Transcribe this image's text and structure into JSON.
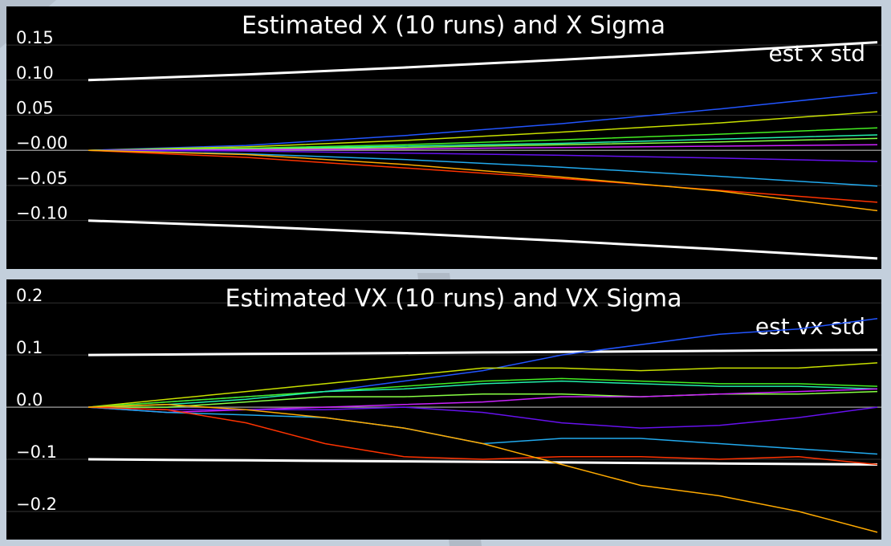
{
  "chart_data": [
    {
      "type": "line",
      "title": "Estimated X (10 runs) and X Sigma",
      "grid": true,
      "legend": "upper right",
      "ylim": [
        -0.169,
        0.205
      ],
      "yticks": [
        0.15,
        {
          "value": 0.1,
          "label": "0.10"
        },
        0.05,
        {
          "value": 0,
          "label": "−0.00"
        },
        {
          "value": -0.05,
          "label": "−0.05"
        },
        {
          "value": -0.1,
          "label": "−0.10"
        }
      ],
      "series": [
        {
          "name": "est x std",
          "color": "#ffffff",
          "values": [
            0.1,
            0.108,
            0.118,
            0.129,
            0.141,
            0.154
          ],
          "lower_values": [
            -0.1,
            -0.108,
            -0.118,
            -0.129,
            -0.141,
            -0.154
          ]
        },
        {
          "color": "#2255ff",
          "values": [
            0,
            0.007,
            0.021,
            0.038,
            0.059,
            0.082
          ]
        },
        {
          "color": "#c8e000",
          "values": [
            0,
            0.005,
            0.014,
            0.026,
            0.039,
            0.055
          ]
        },
        {
          "color": "#44ee22",
          "values": [
            0,
            0.003,
            0.008,
            0.015,
            0.023,
            0.032
          ]
        },
        {
          "color": "#22eeaa",
          "values": [
            0,
            0.002,
            0.006,
            0.01,
            0.016,
            0.022
          ]
        },
        {
          "color": "#88ff44",
          "values": [
            0,
            0.002,
            0.004,
            0.008,
            0.012,
            0.017
          ]
        },
        {
          "color": "#cc22ff",
          "values": [
            0,
            0.001,
            0.002,
            0.004,
            0.006,
            0.008
          ]
        },
        {
          "color": "#6611ee",
          "values": [
            0,
            -0.001,
            -0.004,
            -0.007,
            -0.011,
            -0.016
          ]
        },
        {
          "color": "#22aaee",
          "values": [
            0,
            -0.005,
            -0.013,
            -0.024,
            -0.037,
            -0.051
          ]
        },
        {
          "color": "#ff3300",
          "values": [
            0,
            -0.01,
            -0.025,
            -0.04,
            -0.057,
            -0.074
          ]
        },
        {
          "color": "#ffaa00",
          "values": [
            0,
            -0.006,
            -0.02,
            -0.038,
            -0.058,
            -0.086
          ]
        }
      ]
    },
    {
      "type": "line",
      "title": "Estimated VX (10 runs) and VX Sigma",
      "grid": true,
      "legend": "upper right",
      "ylim": [
        -0.254,
        0.245
      ],
      "yticks": [
        0.2,
        0.1,
        {
          "value": 0,
          "label": "0.0"
        },
        {
          "value": -0.1,
          "label": "−0.1"
        },
        {
          "value": -0.2,
          "label": "−0.2"
        }
      ],
      "series": [
        {
          "name": "est vx std",
          "color": "#ffffff",
          "values": [
            0.1,
            0.101,
            0.102,
            0.103,
            0.104,
            0.105,
            0.106,
            0.107,
            0.108,
            0.109,
            0.11
          ],
          "lower_values": [
            -0.1,
            -0.101,
            -0.102,
            -0.103,
            -0.104,
            -0.105,
            -0.106,
            -0.107,
            -0.108,
            -0.109,
            -0.11
          ]
        },
        {
          "color": "#2255ff",
          "values": [
            0,
            0.01,
            0.02,
            0.03,
            0.05,
            0.07,
            0.1,
            0.12,
            0.14,
            0.15,
            0.17
          ]
        },
        {
          "color": "#c8e000",
          "values": [
            0,
            0.015,
            0.03,
            0.045,
            0.06,
            0.075,
            0.075,
            0.07,
            0.075,
            0.075,
            0.085
          ]
        },
        {
          "color": "#44ee22",
          "values": [
            0,
            0.01,
            0.02,
            0.03,
            0.04,
            0.05,
            0.055,
            0.05,
            0.045,
            0.045,
            0.04
          ]
        },
        {
          "color": "#22eeaa",
          "values": [
            0,
            0.005,
            0.015,
            0.03,
            0.035,
            0.045,
            0.05,
            0.045,
            0.04,
            0.04,
            0.035
          ]
        },
        {
          "color": "#88ff44",
          "values": [
            0,
            0,
            0.01,
            0.02,
            0.02,
            0.025,
            0.025,
            0.02,
            0.025,
            0.025,
            0.03
          ]
        },
        {
          "color": "#cc22ff",
          "values": [
            0,
            -0.01,
            -0.005,
            0,
            0.005,
            0.01,
            0.02,
            0.02,
            0.025,
            0.03,
            0.035
          ]
        },
        {
          "color": "#6611ee",
          "values": [
            0,
            -0.005,
            -0.005,
            -0.005,
            0,
            -0.01,
            -0.03,
            -0.04,
            -0.035,
            -0.02,
            0
          ]
        },
        {
          "color": "#22aaee",
          "values": [
            0,
            -0.01,
            -0.015,
            -0.02,
            -0.04,
            -0.07,
            -0.06,
            -0.06,
            -0.07,
            -0.08,
            -0.09
          ]
        },
        {
          "color": "#ff3300",
          "values": [
            0,
            -0.005,
            -0.03,
            -0.07,
            -0.095,
            -0.1,
            -0.095,
            -0.095,
            -0.1,
            -0.095,
            -0.11
          ]
        },
        {
          "color": "#ffaa00",
          "values": [
            0,
            0.005,
            -0.005,
            -0.02,
            -0.04,
            -0.07,
            -0.11,
            -0.15,
            -0.17,
            -0.2,
            -0.24
          ]
        }
      ]
    }
  ]
}
